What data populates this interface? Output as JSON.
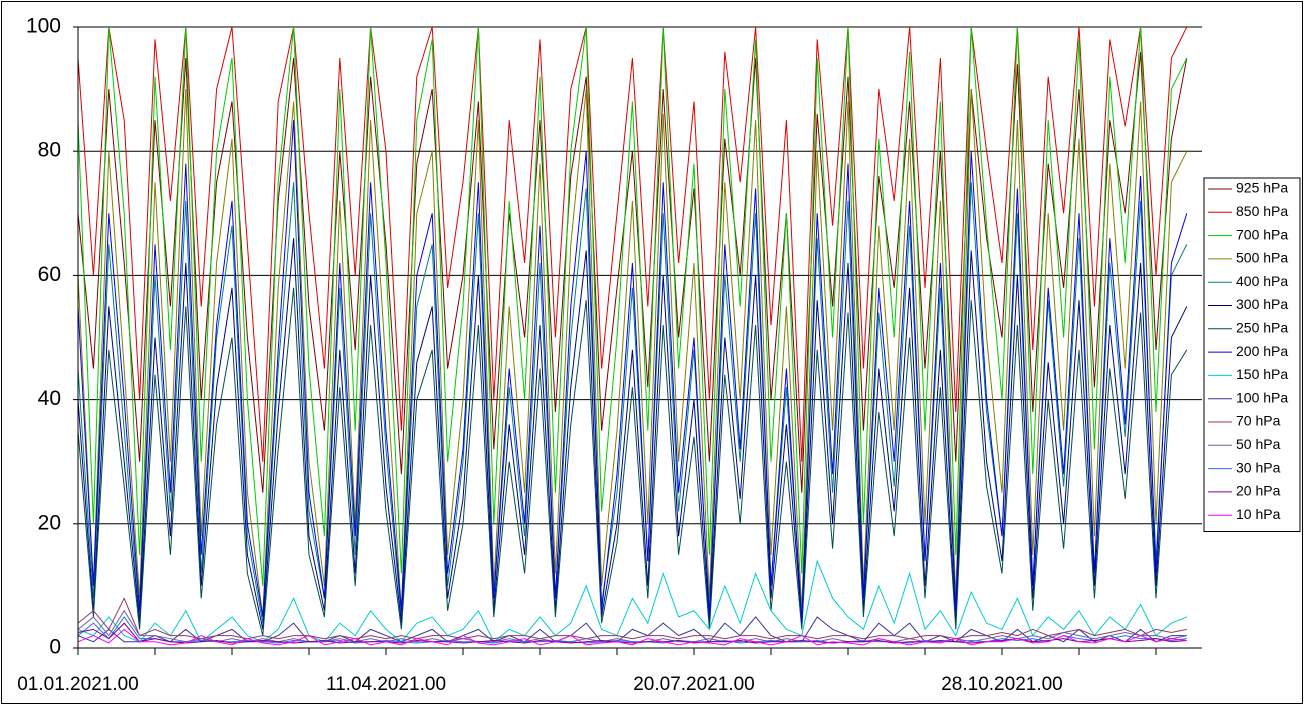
{
  "chart_data": {
    "type": "line",
    "categories": [
      "01.01.2021.00",
      null,
      null,
      null,
      null,
      null,
      null,
      null,
      null,
      null,
      null,
      null,
      null,
      null,
      null,
      null,
      null,
      null,
      null,
      null,
      "11.04.2021.00",
      null,
      null,
      null,
      null,
      null,
      null,
      null,
      null,
      null,
      null,
      null,
      null,
      null,
      null,
      null,
      null,
      null,
      null,
      null,
      "20.07.2021.00",
      null,
      null,
      null,
      null,
      null,
      null,
      null,
      null,
      null,
      null,
      null,
      null,
      null,
      null,
      null,
      null,
      null,
      null,
      null,
      "28.10.2021.00",
      null,
      null,
      null,
      null,
      null,
      null,
      null,
      null,
      null,
      null,
      null,
      null
    ],
    "ylim": [
      0,
      100
    ],
    "yticks": [
      0,
      20,
      40,
      60,
      80,
      100
    ],
    "grid": true,
    "legend": "right",
    "series": [
      {
        "name": "925 hPa",
        "color": "#800000",
        "values": [
          70,
          45,
          90,
          62,
          30,
          85,
          55,
          95,
          40,
          75,
          88,
          50,
          25,
          72,
          95,
          55,
          35,
          80,
          48,
          92,
          65,
          28,
          78,
          90,
          45,
          60,
          88,
          32,
          70,
          50,
          85,
          38,
          76,
          92,
          35,
          58,
          80,
          42,
          90,
          50,
          74,
          30,
          82,
          60,
          95,
          40,
          70,
          25,
          86,
          55,
          92,
          35,
          76,
          58,
          88,
          45,
          80,
          30,
          90,
          66,
          50,
          94,
          38,
          78,
          58,
          90,
          42,
          85,
          70,
          96,
          48,
          82,
          95
        ]
      },
      {
        "name": "850 hPa",
        "color": "#dd0000",
        "values": [
          95,
          60,
          100,
          85,
          40,
          98,
          72,
          100,
          55,
          90,
          100,
          65,
          30,
          88,
          100,
          70,
          45,
          95,
          60,
          100,
          80,
          35,
          92,
          100,
          58,
          75,
          100,
          40,
          85,
          62,
          98,
          50,
          90,
          100,
          45,
          70,
          95,
          55,
          100,
          62,
          88,
          40,
          96,
          75,
          100,
          52,
          85,
          30,
          98,
          68,
          100,
          45,
          90,
          72,
          100,
          58,
          95,
          38,
          100,
          80,
          62,
          100,
          48,
          92,
          70,
          100,
          55,
          98,
          84,
          100,
          60,
          95,
          100
        ]
      },
      {
        "name": "700 hPa",
        "color": "#00cc00",
        "values": [
          85,
          20,
          100,
          70,
          15,
          92,
          48,
          100,
          30,
          80,
          95,
          40,
          10,
          75,
          100,
          45,
          18,
          90,
          35,
          100,
          62,
          12,
          85,
          98,
          30,
          55,
          100,
          20,
          72,
          40,
          92,
          25,
          80,
          100,
          22,
          50,
          88,
          35,
          100,
          45,
          78,
          15,
          90,
          55,
          98,
          30,
          70,
          12,
          95,
          50,
          100,
          20,
          82,
          50,
          96,
          35,
          88,
          15,
          100,
          68,
          40,
          100,
          28,
          85,
          50,
          98,
          32,
          92,
          62,
          100,
          38,
          90,
          95
        ]
      },
      {
        "name": "500 hPa",
        "color": "#808000",
        "values": [
          60,
          10,
          80,
          45,
          8,
          75,
          30,
          90,
          18,
          62,
          82,
          25,
          5,
          58,
          88,
          30,
          10,
          72,
          20,
          85,
          45,
          6,
          70,
          80,
          15,
          40,
          85,
          10,
          55,
          25,
          78,
          12,
          65,
          90,
          10,
          35,
          72,
          20,
          86,
          30,
          62,
          8,
          75,
          40,
          85,
          15,
          55,
          6,
          80,
          35,
          88,
          10,
          68,
          35,
          82,
          20,
          72,
          8,
          90,
          50,
          25,
          85,
          15,
          70,
          35,
          82,
          18,
          78,
          45,
          88,
          20,
          75,
          80
        ]
      },
      {
        "name": "400 hPa",
        "color": "#008080",
        "values": [
          45,
          8,
          65,
          35,
          5,
          60,
          22,
          72,
          12,
          50,
          68,
          18,
          4,
          45,
          75,
          22,
          8,
          58,
          15,
          70,
          32,
          5,
          55,
          65,
          10,
          30,
          70,
          8,
          42,
          18,
          62,
          8,
          50,
          74,
          7,
          25,
          58,
          14,
          70,
          22,
          48,
          6,
          60,
          30,
          70,
          10,
          42,
          5,
          66,
          25,
          72,
          8,
          54,
          26,
          68,
          14,
          58,
          6,
          75,
          38,
          18,
          70,
          10,
          56,
          26,
          66,
          12,
          62,
          34,
          72,
          14,
          60,
          65
        ]
      },
      {
        "name": "300 hPa",
        "color": "#000080",
        "values": [
          40,
          6,
          55,
          30,
          4,
          50,
          18,
          62,
          10,
          42,
          58,
          15,
          3,
          38,
          66,
          18,
          6,
          48,
          12,
          60,
          26,
          4,
          46,
          55,
          8,
          24,
          60,
          6,
          36,
          15,
          52,
          6,
          42,
          64,
          5,
          20,
          48,
          10,
          60,
          18,
          40,
          4,
          50,
          24,
          60,
          8,
          36,
          4,
          56,
          20,
          62,
          6,
          45,
          22,
          58,
          10,
          48,
          4,
          64,
          30,
          14,
          60,
          8,
          46,
          20,
          56,
          10,
          52,
          28,
          62,
          10,
          50,
          55
        ]
      },
      {
        "name": "250 hPa",
        "color": "#004d4d",
        "values": [
          35,
          5,
          48,
          26,
          3,
          44,
          15,
          55,
          8,
          36,
          50,
          12,
          2,
          32,
          58,
          15,
          5,
          42,
          10,
          52,
          22,
          3,
          40,
          48,
          6,
          20,
          52,
          5,
          30,
          12,
          45,
          5,
          36,
          56,
          4,
          17,
          42,
          8,
          52,
          15,
          34,
          3,
          44,
          20,
          52,
          6,
          30,
          3,
          48,
          16,
          54,
          5,
          38,
          18,
          50,
          8,
          42,
          3,
          56,
          26,
          12,
          52,
          6,
          40,
          16,
          48,
          8,
          45,
          24,
          54,
          8,
          44,
          48
        ]
      },
      {
        "name": "200 hPa",
        "color": "#0000ee",
        "values": [
          55,
          10,
          70,
          40,
          6,
          65,
          25,
          78,
          15,
          52,
          72,
          20,
          5,
          48,
          85,
          25,
          8,
          62,
          18,
          75,
          35,
          6,
          60,
          70,
          12,
          32,
          75,
          8,
          45,
          20,
          68,
          8,
          55,
          80,
          6,
          28,
          62,
          14,
          75,
          25,
          50,
          5,
          65,
          32,
          74,
          10,
          45,
          4,
          70,
          28,
          78,
          8,
          58,
          30,
          72,
          14,
          62,
          6,
          80,
          40,
          18,
          74,
          10,
          58,
          28,
          70,
          12,
          66,
          36,
          76,
          12,
          62,
          70
        ]
      },
      {
        "name": "150 hPa",
        "color": "#00cccc",
        "values": [
          3,
          2,
          5,
          2,
          1,
          4,
          2,
          6,
          1,
          3,
          5,
          2,
          1,
          3,
          8,
          2,
          1,
          4,
          2,
          6,
          3,
          1,
          4,
          5,
          2,
          3,
          6,
          1,
          3,
          2,
          5,
          2,
          4,
          10,
          3,
          2,
          8,
          4,
          12,
          5,
          6,
          3,
          10,
          4,
          12,
          6,
          3,
          2,
          14,
          8,
          5,
          3,
          10,
          4,
          12,
          3,
          6,
          2,
          9,
          4,
          3,
          8,
          2,
          5,
          3,
          6,
          2,
          5,
          3,
          7,
          2,
          4,
          5
        ]
      },
      {
        "name": "100 hPa",
        "color": "#333399",
        "values": [
          2,
          1,
          3,
          1,
          1,
          2,
          1,
          3,
          1,
          2,
          3,
          1,
          1,
          2,
          4,
          1,
          1,
          2,
          1,
          3,
          2,
          1,
          2,
          3,
          1,
          2,
          3,
          1,
          2,
          1,
          3,
          1,
          2,
          4,
          1,
          1,
          3,
          2,
          4,
          2,
          3,
          1,
          4,
          2,
          5,
          2,
          1,
          1,
          5,
          3,
          2,
          1,
          4,
          2,
          4,
          1,
          2,
          1,
          3,
          2,
          1,
          3,
          1,
          2,
          1,
          3,
          1,
          2,
          1,
          3,
          1,
          2,
          2
        ]
      },
      {
        "name": "70 hPa",
        "color": "#993366",
        "values": [
          4,
          6,
          3,
          8,
          2,
          3,
          2,
          2,
          1.5,
          2,
          2,
          1.5,
          2,
          1.5,
          2,
          2,
          1.5,
          2,
          1.5,
          2,
          1.5,
          2,
          1.5,
          2,
          2,
          1.5,
          2,
          1.5,
          2,
          2,
          1.5,
          2,
          2,
          1.5,
          2,
          2,
          1.5,
          2,
          2,
          1.5,
          2,
          2,
          1.5,
          2,
          2,
          1.5,
          2,
          2,
          1.5,
          2,
          2,
          1.5,
          2,
          2,
          1.5,
          2,
          2,
          1.5,
          2,
          2,
          2.5,
          2,
          3,
          2,
          2.5,
          3,
          2,
          2.5,
          3,
          2,
          3,
          2.5,
          3
        ]
      },
      {
        "name": "50 hPa",
        "color": "#666699",
        "values": [
          3,
          5,
          2,
          6,
          2,
          2,
          1.5,
          1,
          1.5,
          1,
          1.5,
          1,
          1.5,
          1,
          1.5,
          1,
          1,
          1.5,
          1,
          1.5,
          1,
          1.5,
          1,
          1.5,
          1,
          1.5,
          1,
          1,
          1.5,
          1,
          1.5,
          1,
          1,
          1.5,
          1,
          1.5,
          1,
          1,
          1.5,
          1,
          1,
          1.5,
          1,
          1,
          1.5,
          1,
          1.5,
          1,
          1,
          1.5,
          1,
          1,
          1.5,
          1,
          1.5,
          1,
          1,
          1.5,
          1,
          1.5,
          2,
          1.5,
          2,
          1.5,
          2.5,
          2,
          1.5,
          2,
          2.5,
          2,
          2,
          1.5,
          2
        ]
      },
      {
        "name": "30 hPa",
        "color": "#3366ff",
        "values": [
          2,
          4,
          1.5,
          5,
          1.5,
          1.5,
          1,
          1,
          1.2,
          1,
          1,
          1.2,
          1,
          0.8,
          1.2,
          1,
          1,
          1.2,
          0.8,
          1,
          1.2,
          1,
          0.8,
          1,
          1.2,
          1,
          1,
          0.8,
          1.2,
          1,
          1,
          1.2,
          1,
          0.8,
          1,
          1.2,
          1,
          1,
          0.8,
          1.2,
          1,
          1,
          1.2,
          0.8,
          1,
          1.2,
          1,
          1,
          1.2,
          0.8,
          1,
          1.2,
          1,
          1,
          0.8,
          1.2,
          1,
          1,
          1.2,
          1,
          1.5,
          1.2,
          1.5,
          1,
          2,
          1.5,
          1.2,
          1.5,
          2,
          1.5,
          1.5,
          1.2,
          1.5
        ]
      },
      {
        "name": "20 hPa",
        "color": "#800080",
        "values": [
          2.5,
          3,
          1.5,
          4,
          1,
          1.5,
          1,
          0.8,
          1,
          1.2,
          0.8,
          1,
          1.2,
          1,
          0.8,
          1,
          1.2,
          0.8,
          1,
          1,
          1,
          0.8,
          1.2,
          1,
          1,
          0.8,
          1,
          1.2,
          1,
          0.8,
          1.2,
          1,
          0.8,
          1,
          1.2,
          1,
          0.8,
          1,
          1,
          1.2,
          0.8,
          1,
          1,
          1.2,
          0.8,
          1,
          1,
          1.2,
          1,
          0.8,
          1,
          1,
          1.2,
          0.8,
          1,
          1,
          1.2,
          1,
          0.8,
          1,
          1.2,
          1.5,
          1,
          1.2,
          1.5,
          1,
          1.2,
          1.5,
          1,
          1.2,
          1.5,
          1,
          1.2
        ]
      },
      {
        "name": "10 hPa",
        "color": "#ff00ff",
        "values": [
          1,
          2,
          0.8,
          3,
          1,
          1,
          0.5,
          0.8,
          2,
          1,
          0.5,
          1.5,
          0.8,
          0.5,
          1,
          2,
          0.5,
          1,
          1.5,
          0.5,
          1,
          0.5,
          1.5,
          1,
          0.5,
          2,
          0.8,
          0.5,
          1,
          1.5,
          0.5,
          1,
          2,
          0.5,
          0.8,
          1,
          0.5,
          1.5,
          1,
          0.5,
          1,
          0.8,
          0.5,
          1.5,
          1,
          0.5,
          1,
          2,
          0.5,
          1,
          0.8,
          0.5,
          1.5,
          1,
          0.5,
          1,
          0.8,
          1.5,
          0.5,
          1,
          1,
          1.5,
          0.8,
          1,
          2,
          1,
          0.8,
          1.5,
          1,
          2,
          1,
          1.5,
          1.2
        ]
      }
    ]
  }
}
